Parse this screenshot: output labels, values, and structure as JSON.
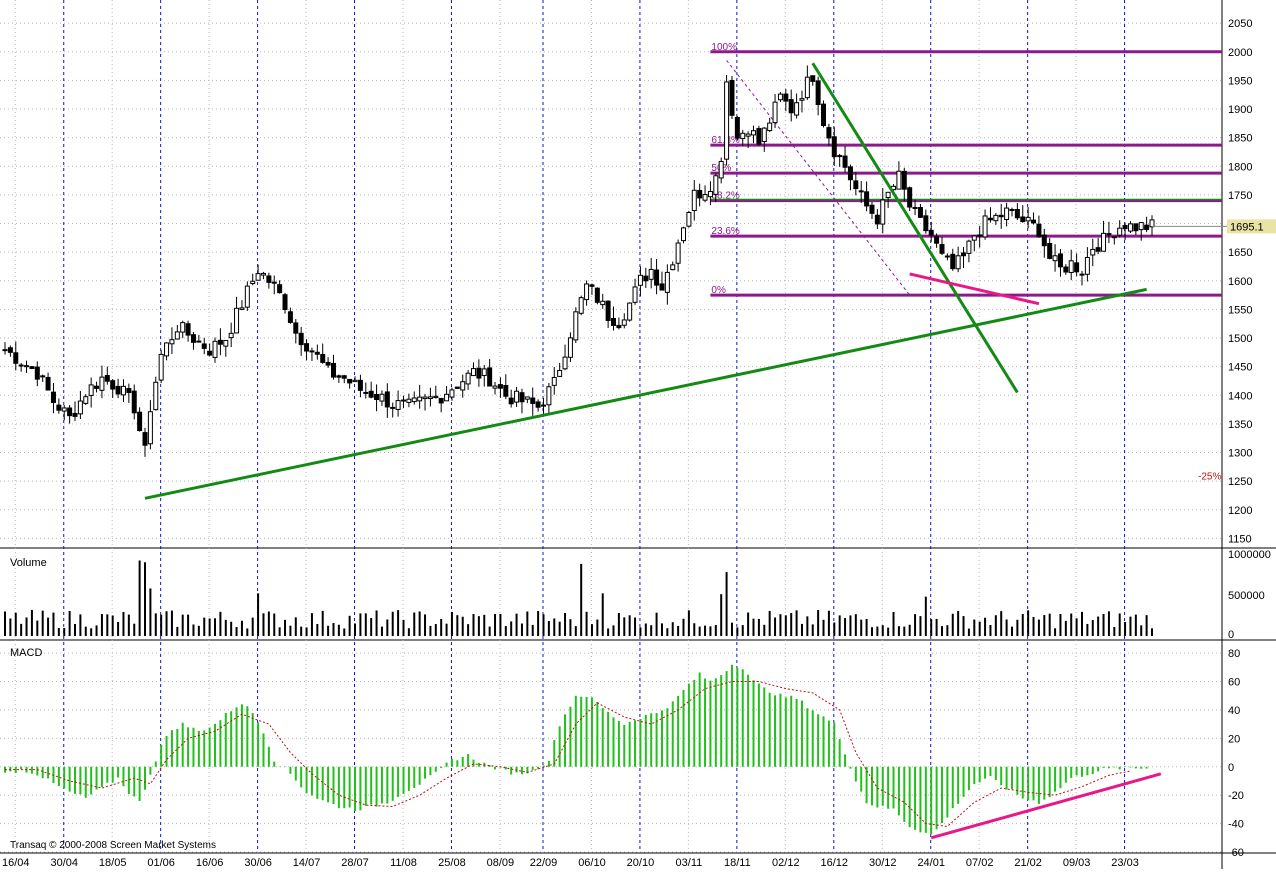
{
  "chart_data": {
    "type": "candlestick",
    "copyright": "Transaq © 2000-2008 Screen Market Systems",
    "x_labels": [
      "16/04",
      "30/04",
      "18/05",
      "01/06",
      "16/06",
      "30/06",
      "14/07",
      "28/07",
      "11/08",
      "25/08",
      "08/09",
      "22/09",
      "06/10",
      "20/10",
      "03/11",
      "18/11",
      "02/12",
      "16/12",
      "30/12",
      "24/01",
      "07/02",
      "21/02",
      "09/03",
      "23/03"
    ],
    "price_panel": {
      "y_ticks": [
        2050,
        2000,
        1950,
        1900,
        1850,
        1800,
        1750,
        1700,
        1650,
        1600,
        1550,
        1500,
        1450,
        1400,
        1350,
        1300,
        1250,
        1200,
        1150
      ],
      "ylim": [
        1135,
        2080
      ],
      "last_price": "1695.1",
      "percent_note": "-25%",
      "close_path": [
        [
          0,
          1480
        ],
        [
          3,
          1460
        ],
        [
          6,
          1440
        ],
        [
          9,
          1390
        ],
        [
          12,
          1360
        ],
        [
          15,
          1405
        ],
        [
          18,
          1430
        ],
        [
          21,
          1415
        ],
        [
          24,
          1380
        ],
        [
          26,
          1300
        ],
        [
          27,
          1380
        ],
        [
          29,
          1470
        ],
        [
          32,
          1520
        ],
        [
          35,
          1500
        ],
        [
          38,
          1480
        ],
        [
          41,
          1500
        ],
        [
          44,
          1560
        ],
        [
          47,
          1620
        ],
        [
          50,
          1590
        ],
        [
          52,
          1560
        ],
        [
          54,
          1510
        ],
        [
          57,
          1480
        ],
        [
          60,
          1440
        ],
        [
          63,
          1430
        ],
        [
          66,
          1410
        ],
        [
          69,
          1400
        ],
        [
          72,
          1385
        ],
        [
          75,
          1380
        ],
        [
          78,
          1390
        ],
        [
          81,
          1400
        ],
        [
          84,
          1420
        ],
        [
          87,
          1440
        ],
        [
          90,
          1430
        ],
        [
          93,
          1400
        ],
        [
          96,
          1390
        ],
        [
          99,
          1380
        ],
        [
          102,
          1420
        ],
        [
          104,
          1480
        ],
        [
          106,
          1540
        ],
        [
          108,
          1590
        ],
        [
          110,
          1570
        ],
        [
          112,
          1540
        ],
        [
          114,
          1530
        ],
        [
          116,
          1560
        ],
        [
          118,
          1600
        ],
        [
          120,
          1620
        ],
        [
          122,
          1590
        ],
        [
          124,
          1640
        ],
        [
          126,
          1700
        ],
        [
          128,
          1750
        ],
        [
          130,
          1760
        ],
        [
          132,
          1780
        ],
        [
          133,
          1820
        ],
        [
          134,
          1950
        ],
        [
          136,
          1850
        ],
        [
          138,
          1870
        ],
        [
          140,
          1840
        ],
        [
          142,
          1880
        ],
        [
          144,
          1920
        ],
        [
          146,
          1900
        ],
        [
          148,
          1930
        ],
        [
          150,
          1960
        ],
        [
          152,
          1880
        ],
        [
          154,
          1830
        ],
        [
          156,
          1800
        ],
        [
          158,
          1760
        ],
        [
          160,
          1730
        ],
        [
          162,
          1710
        ],
        [
          164,
          1750
        ],
        [
          166,
          1780
        ],
        [
          168,
          1730
        ],
        [
          170,
          1700
        ],
        [
          172,
          1680
        ],
        [
          174,
          1640
        ],
        [
          176,
          1620
        ],
        [
          178,
          1640
        ],
        [
          180,
          1680
        ],
        [
          182,
          1700
        ],
        [
          184,
          1710
        ],
        [
          186,
          1720
        ],
        [
          188,
          1710
        ],
        [
          190,
          1700
        ],
        [
          192,
          1690
        ],
        [
          194,
          1640
        ],
        [
          196,
          1620
        ],
        [
          198,
          1630
        ],
        [
          200,
          1620
        ],
        [
          202,
          1660
        ],
        [
          204,
          1670
        ],
        [
          206,
          1690
        ],
        [
          208,
          1700
        ],
        [
          209,
          1695
        ]
      ],
      "volume_spikes": [
        [
          25,
          920000
        ],
        [
          26,
          900000
        ],
        [
          27,
          580000
        ],
        [
          47,
          520000
        ],
        [
          107,
          880000
        ],
        [
          111,
          520000
        ],
        [
          133,
          510000
        ],
        [
          134,
          780000
        ],
        [
          171,
          480000
        ]
      ],
      "fibonacci": [
        {
          "label": "100%",
          "value": 2000
        },
        {
          "label": "61.8%",
          "value": 1837
        },
        {
          "label": "50%",
          "value": 1788
        },
        {
          "label": "38.2%",
          "value": 1740
        },
        {
          "label": "23.6%",
          "value": 1678
        },
        {
          "label": "0%",
          "value": 1575
        }
      ],
      "fib_extra_line": 1742,
      "trendlines": [
        {
          "color": "#138a13",
          "from": [
            26,
            1220
          ],
          "to": [
            212,
            1585
          ]
        },
        {
          "color": "#138a13",
          "from": [
            150,
            1980
          ],
          "to": [
            188,
            1405
          ]
        },
        {
          "color": "#e8188a",
          "from": [
            168,
            1612
          ],
          "to": [
            192,
            1560
          ]
        }
      ]
    },
    "volume_panel": {
      "label": "Volume",
      "y_ticks": [
        "1000000",
        "500000",
        "0"
      ],
      "ylim": [
        0,
        1000000
      ]
    },
    "macd_panel": {
      "label": "MACD",
      "y_ticks": [
        80,
        60,
        40,
        20,
        0,
        -20,
        -40,
        -60
      ],
      "ylim": [
        -60,
        85
      ],
      "histogram_path": [
        [
          0,
          -5
        ],
        [
          3,
          -2
        ],
        [
          6,
          -5
        ],
        [
          9,
          -12
        ],
        [
          12,
          -18
        ],
        [
          15,
          -22
        ],
        [
          18,
          -15
        ],
        [
          21,
          -8
        ],
        [
          23,
          -18
        ],
        [
          25,
          -25
        ],
        [
          27,
          -5
        ],
        [
          29,
          15
        ],
        [
          31,
          26
        ],
        [
          33,
          30
        ],
        [
          36,
          25
        ],
        [
          39,
          30
        ],
        [
          42,
          40
        ],
        [
          44,
          45
        ],
        [
          46,
          38
        ],
        [
          48,
          25
        ],
        [
          50,
          5
        ],
        [
          53,
          -5
        ],
        [
          56,
          -18
        ],
        [
          59,
          -24
        ],
        [
          62,
          -28
        ],
        [
          65,
          -30
        ],
        [
          68,
          -28
        ],
        [
          71,
          -25
        ],
        [
          74,
          -18
        ],
        [
          77,
          -12
        ],
        [
          80,
          -5
        ],
        [
          83,
          5
        ],
        [
          86,
          8
        ],
        [
          89,
          2
        ],
        [
          92,
          -2
        ],
        [
          95,
          -5
        ],
        [
          98,
          -3
        ],
        [
          101,
          5
        ],
        [
          103,
          30
        ],
        [
          106,
          50
        ],
        [
          108,
          50
        ],
        [
          110,
          45
        ],
        [
          112,
          38
        ],
        [
          115,
          30
        ],
        [
          118,
          35
        ],
        [
          121,
          38
        ],
        [
          124,
          45
        ],
        [
          127,
          58
        ],
        [
          129,
          65
        ],
        [
          131,
          60
        ],
        [
          133,
          65
        ],
        [
          135,
          72
        ],
        [
          137,
          70
        ],
        [
          139,
          60
        ],
        [
          141,
          55
        ],
        [
          144,
          50
        ],
        [
          147,
          48
        ],
        [
          150,
          40
        ],
        [
          152,
          35
        ],
        [
          154,
          30
        ],
        [
          156,
          10
        ],
        [
          158,
          -10
        ],
        [
          160,
          -25
        ],
        [
          162,
          -28
        ],
        [
          165,
          -30
        ],
        [
          168,
          -42
        ],
        [
          170,
          -45
        ],
        [
          172,
          -48
        ],
        [
          174,
          -40
        ],
        [
          177,
          -25
        ],
        [
          180,
          -12
        ],
        [
          183,
          -8
        ],
        [
          186,
          -15
        ],
        [
          189,
          -22
        ],
        [
          192,
          -25
        ],
        [
          195,
          -18
        ],
        [
          198,
          -8
        ],
        [
          201,
          -5
        ],
        [
          204,
          -2
        ],
        [
          207,
          -1
        ]
      ],
      "signal_path": [
        [
          0,
          -2
        ],
        [
          6,
          -2
        ],
        [
          12,
          -10
        ],
        [
          18,
          -15
        ],
        [
          24,
          -8
        ],
        [
          27,
          -12
        ],
        [
          30,
          5
        ],
        [
          34,
          20
        ],
        [
          39,
          25
        ],
        [
          44,
          37
        ],
        [
          49,
          30
        ],
        [
          53,
          10
        ],
        [
          57,
          -5
        ],
        [
          62,
          -20
        ],
        [
          67,
          -27
        ],
        [
          72,
          -28
        ],
        [
          77,
          -20
        ],
        [
          82,
          -8
        ],
        [
          87,
          2
        ],
        [
          92,
          0
        ],
        [
          97,
          -4
        ],
        [
          102,
          2
        ],
        [
          106,
          30
        ],
        [
          110,
          45
        ],
        [
          115,
          35
        ],
        [
          120,
          30
        ],
        [
          125,
          40
        ],
        [
          130,
          55
        ],
        [
          135,
          60
        ],
        [
          140,
          60
        ],
        [
          145,
          55
        ],
        [
          150,
          52
        ],
        [
          155,
          40
        ],
        [
          158,
          10
        ],
        [
          162,
          -15
        ],
        [
          167,
          -25
        ],
        [
          171,
          -40
        ],
        [
          175,
          -42
        ],
        [
          180,
          -25
        ],
        [
          185,
          -15
        ],
        [
          190,
          -18
        ],
        [
          195,
          -20
        ],
        [
          200,
          -14
        ],
        [
          205,
          -6
        ],
        [
          209,
          -3
        ]
      ],
      "trendline": {
        "color": "#e8188a",
        "from": [
          172,
          -50
        ],
        "to": [
          210,
          -5
        ]
      }
    }
  }
}
